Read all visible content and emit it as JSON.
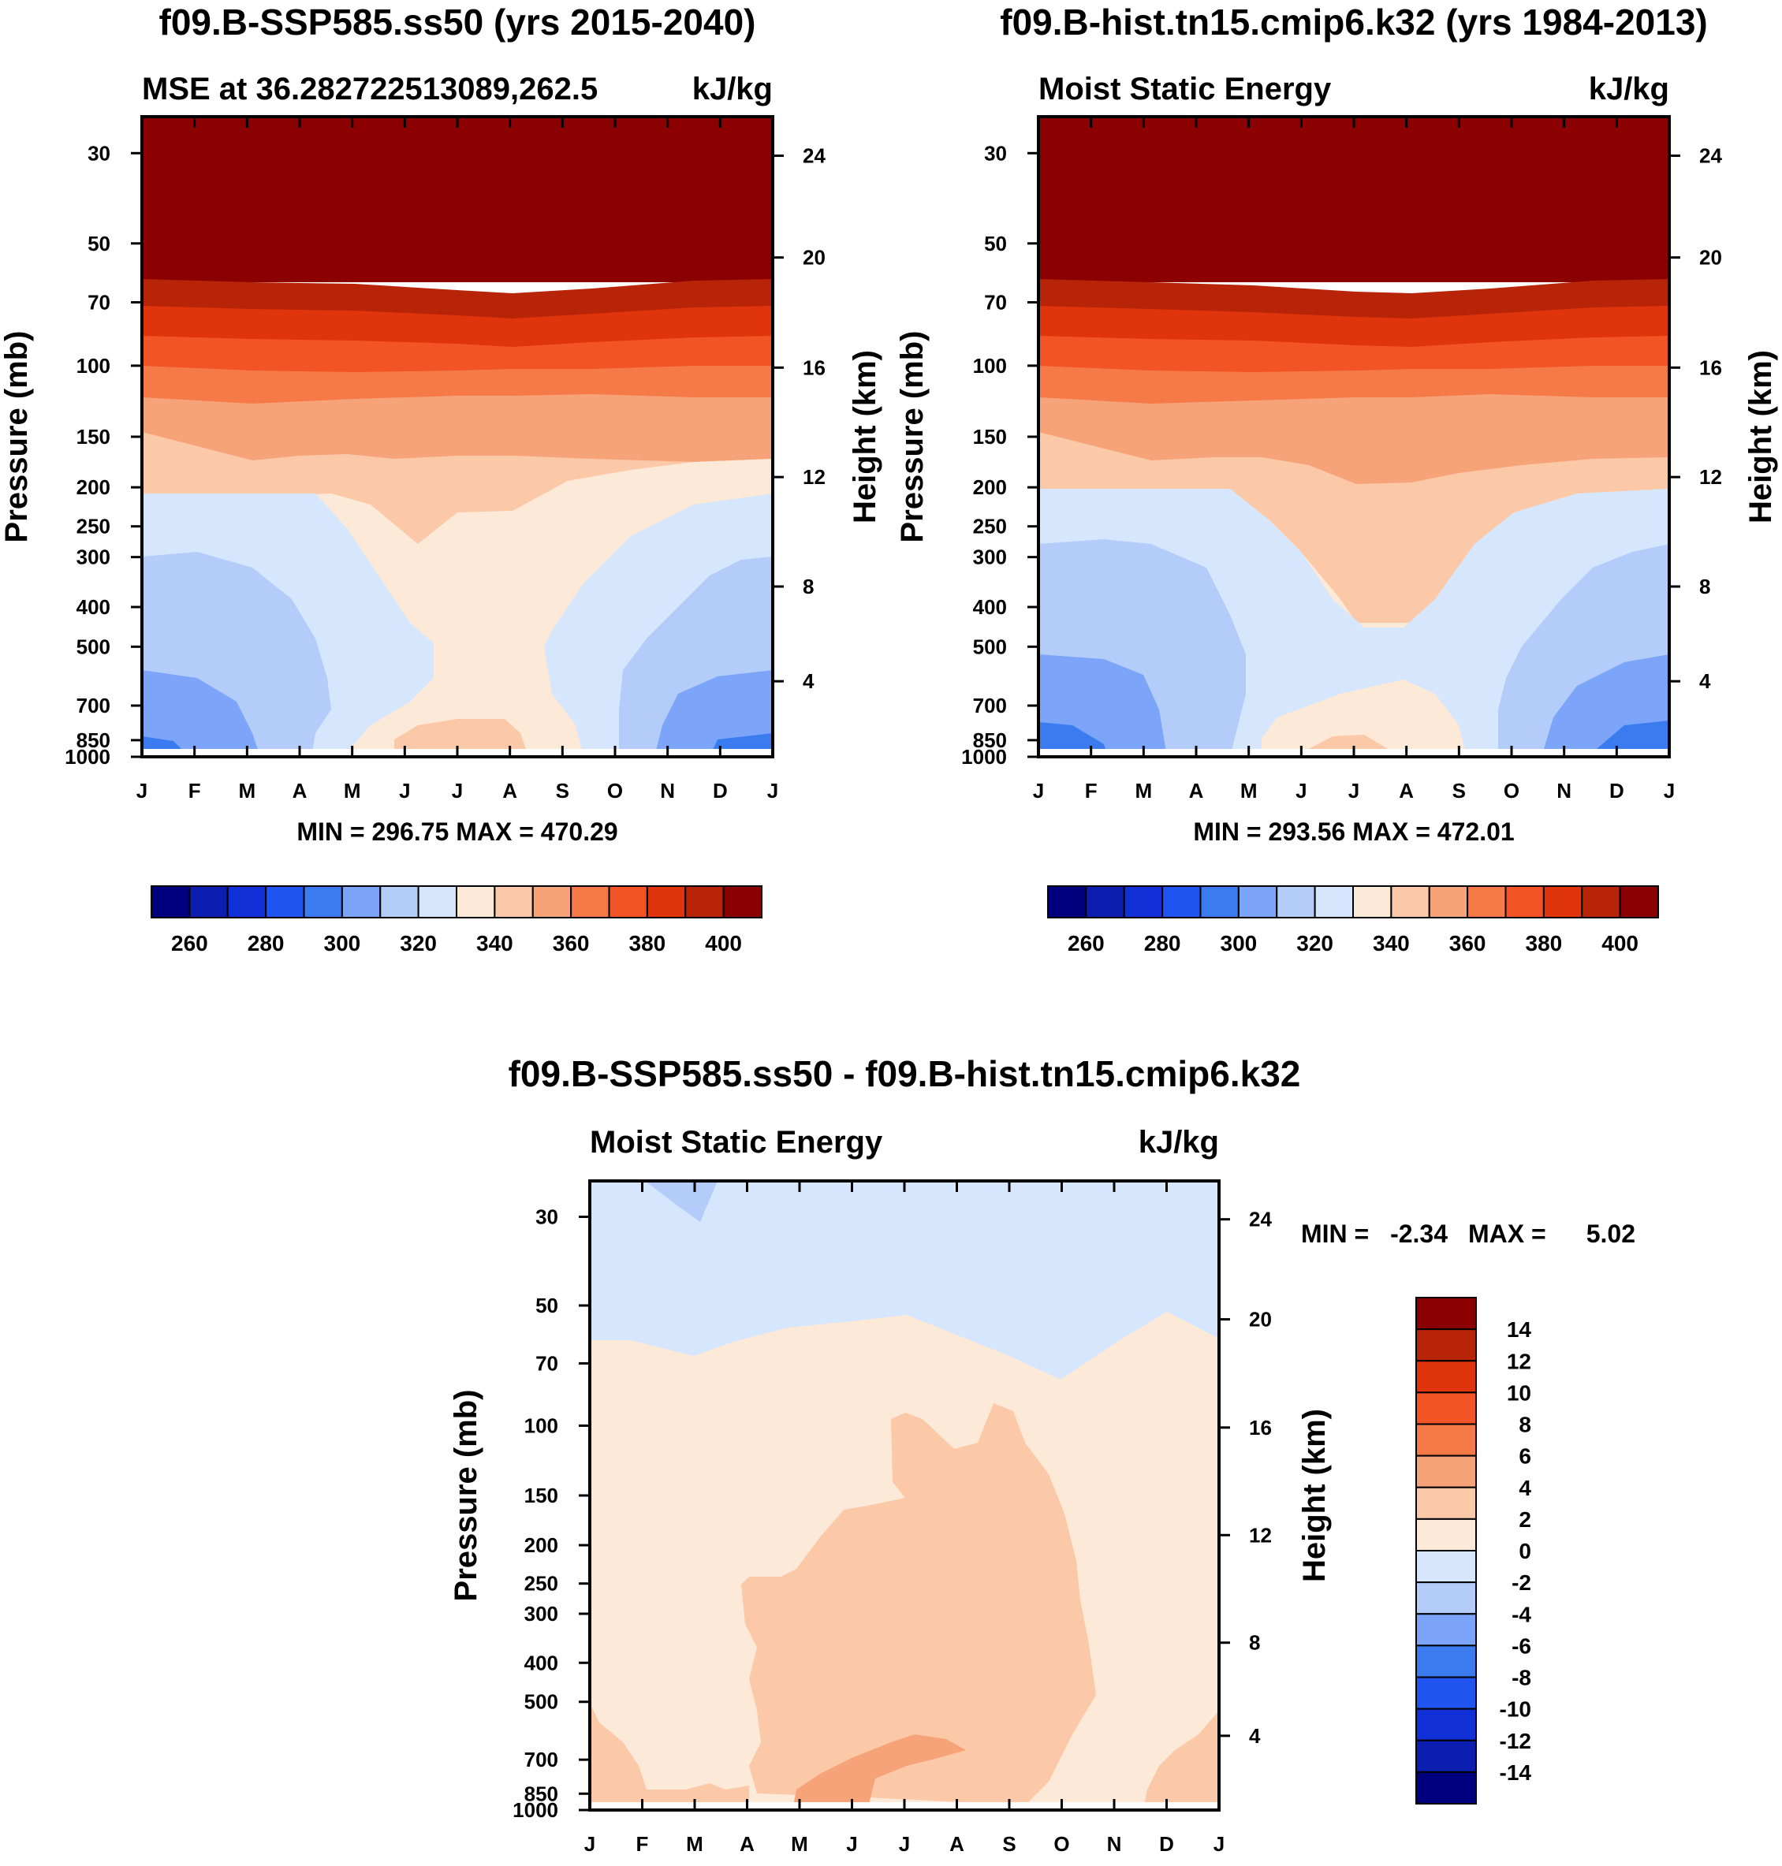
{
  "figure": {
    "type": "contour_panels",
    "colors": {
      "mse_scale": [
        "#00007f",
        "#0b1eb0",
        "#1230d8",
        "#2054f0",
        "#3a7cf0",
        "#7ca4f8",
        "#b4ccfa",
        "#d6e6fc",
        "#fde9d8",
        "#fbc8a8",
        "#f7a37a",
        "#f57a48",
        "#f25425",
        "#e0340c",
        "#b82408",
        "#8b0000"
      ],
      "diff_scale": [
        "#00007f",
        "#0b1eb0",
        "#1230d8",
        "#2054f0",
        "#3a7cf0",
        "#7ca4f8",
        "#b4ccfa",
        "#d6e6fc",
        "#fde9d8",
        "#fbc8a8",
        "#f7a37a",
        "#f57a48",
        "#f25425",
        "#e0340c",
        "#b82408",
        "#8b0000"
      ]
    }
  },
  "chart_data": [
    {
      "type": "contour",
      "main_title": "f09.B-SSP585.ss50 (yrs 2015-2040)",
      "left_string": "MSE at 36.282722513089,262.5",
      "right_string": "kJ/kg",
      "x_ticks": [
        "J",
        "F",
        "M",
        "A",
        "M",
        "J",
        "J",
        "A",
        "S",
        "O",
        "N",
        "D",
        "J"
      ],
      "y_ticks": [
        "30",
        "50",
        "70",
        "100",
        "150",
        "200",
        "250",
        "300",
        "400",
        "500",
        "700",
        "850",
        "1000"
      ],
      "y_label": "Pressure (mb)",
      "y2_ticks": [
        "24",
        "20",
        "16",
        "12",
        "8",
        "4"
      ],
      "y2_label": "Height (km)",
      "min_max": "MIN = 296.75 MAX = 470.29",
      "colorbar_labels": [
        "260",
        "280",
        "300",
        "320",
        "340",
        "360",
        "380",
        "400"
      ],
      "levels": [
        250,
        260,
        270,
        280,
        290,
        300,
        310,
        320,
        330,
        340,
        350,
        360,
        370,
        380,
        390,
        400
      ],
      "min": 296.75,
      "max": 470.29
    },
    {
      "type": "contour",
      "main_title": "f09.B-hist.tn15.cmip6.k32 (yrs 1984-2013)",
      "left_string": "Moist Static Energy",
      "right_string": "kJ/kg",
      "x_ticks": [
        "J",
        "F",
        "M",
        "A",
        "M",
        "J",
        "J",
        "A",
        "S",
        "O",
        "N",
        "D",
        "J"
      ],
      "y_ticks": [
        "30",
        "50",
        "70",
        "100",
        "150",
        "200",
        "250",
        "300",
        "400",
        "500",
        "700",
        "850",
        "1000"
      ],
      "y_label": "Pressure (mb)",
      "y2_ticks": [
        "24",
        "20",
        "16",
        "12",
        "8",
        "4"
      ],
      "y2_label": "Height (km)",
      "min_max": "MIN = 293.56 MAX = 472.01",
      "colorbar_labels": [
        "260",
        "280",
        "300",
        "320",
        "340",
        "360",
        "380",
        "400"
      ],
      "levels": [
        250,
        260,
        270,
        280,
        290,
        300,
        310,
        320,
        330,
        340,
        350,
        360,
        370,
        380,
        390,
        400
      ],
      "min": 293.56,
      "max": 472.01
    },
    {
      "type": "contour",
      "main_title": "f09.B-SSP585.ss50 - f09.B-hist.tn15.cmip6.k32",
      "left_string": "Moist Static Energy",
      "right_string": "kJ/kg",
      "x_ticks": [
        "J",
        "F",
        "M",
        "A",
        "M",
        "J",
        "J",
        "A",
        "S",
        "O",
        "N",
        "D",
        "J"
      ],
      "y_ticks": [
        "30",
        "50",
        "70",
        "100",
        "150",
        "200",
        "250",
        "300",
        "400",
        "500",
        "700",
        "850",
        "1000"
      ],
      "y_label": "Pressure (mb)",
      "y2_ticks": [
        "24",
        "20",
        "16",
        "12",
        "8",
        "4"
      ],
      "y2_label": "Height (km)",
      "min_max_min_label": "MIN =",
      "min_max_min_value": "-2.34",
      "min_max_max_label": "MAX =",
      "min_max_max_value": "5.02",
      "colorbar_labels": [
        "14",
        "12",
        "10",
        "8",
        "6",
        "4",
        "2",
        "0",
        "-2",
        "-4",
        "-6",
        "-8",
        "-10",
        "-12",
        "-14"
      ],
      "min": -2.34,
      "max": 5.02
    }
  ]
}
